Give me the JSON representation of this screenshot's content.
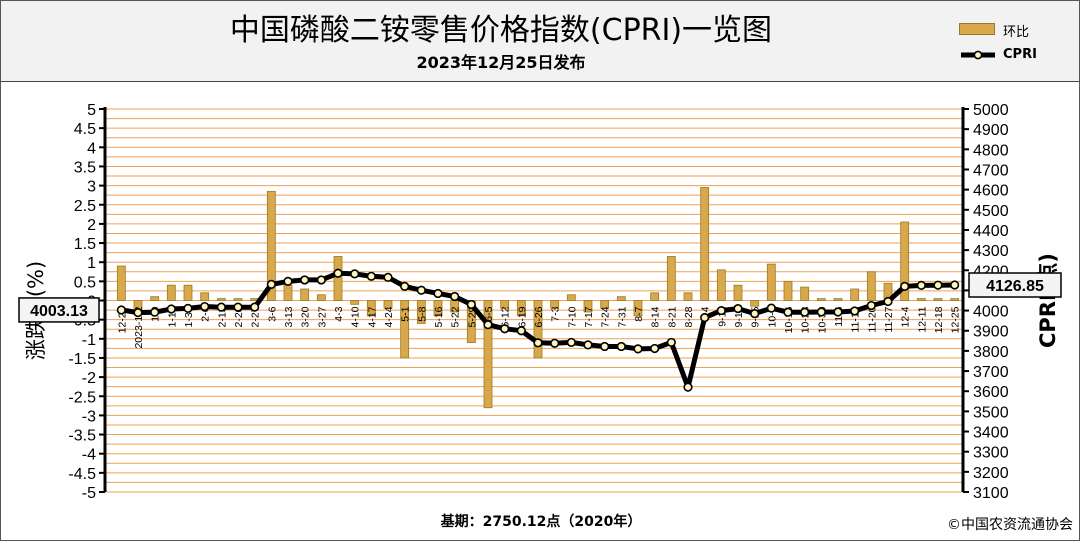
{
  "header": {
    "title": "中国磷酸二铵零售价格指数(CPRI)一览图",
    "subtitle": "2023年12月25日发布"
  },
  "legend": {
    "bar_label": "环比",
    "line_label": "CPRI"
  },
  "footer": {
    "base": "基期：2750.12点（2020年）",
    "copyright": "©中国农资流通协会"
  },
  "chart_data": {
    "type": "bar+line",
    "left_axis": {
      "label": "涨跌幅(%)",
      "range": [
        -5,
        5
      ],
      "ticks": [
        "5",
        "4.5",
        "4",
        "3.5",
        "3",
        "2.5",
        "2",
        "1.5",
        "1",
        "0.5",
        "0",
        "-0.5",
        "-1",
        "-1.5",
        "-2",
        "-2.5",
        "-3",
        "-3.5",
        "-4",
        "-4.5",
        "-5"
      ]
    },
    "right_axis": {
      "label": "CPRI(点)",
      "range": [
        3100,
        5000
      ],
      "ticks": [
        "5000",
        "4900",
        "4800",
        "4700",
        "4600",
        "4500",
        "4400",
        "4300",
        "4200",
        "4100",
        "4000",
        "3900",
        "3800",
        "3700",
        "3600",
        "3500",
        "3400",
        "3300",
        "3200",
        "3100"
      ]
    },
    "start_value_label": "4003.13",
    "end_value_label": "4126.85",
    "categories": [
      "12-26",
      "2023-1-2",
      "1-9",
      "1-16",
      "1-30",
      "2-6",
      "2-13",
      "2-20",
      "2-27",
      "3-6",
      "3-13",
      "3-20",
      "3-27",
      "4-3",
      "4-10",
      "4-17",
      "4-24",
      "5-1",
      "5-8",
      "5-16",
      "5-22",
      "5-29",
      "6-5",
      "6-12",
      "6-19",
      "6-26",
      "7-3",
      "7-10",
      "7-17",
      "7-24",
      "7-31",
      "8-7",
      "8-14",
      "8-21",
      "8-28",
      "9-4",
      "9-11",
      "9-18",
      "9-25",
      "10-9",
      "10-16",
      "10-23",
      "10-30",
      "11-6",
      "11-13",
      "11-20",
      "11-27",
      "12-4",
      "12-11",
      "12-18",
      "12-25"
    ],
    "series": [
      {
        "name": "环比",
        "type": "bar",
        "values": [
          0.9,
          -0.3,
          0.1,
          0.4,
          0.4,
          0.2,
          0.05,
          0.05,
          0.05,
          2.85,
          0.4,
          0.3,
          0.15,
          1.15,
          -0.1,
          -0.4,
          -0.2,
          -1.5,
          -0.6,
          -0.4,
          -0.3,
          -1.1,
          -2.8,
          -0.2,
          -0.4,
          -1.5,
          -0.2,
          0.15,
          -0.3,
          -0.2,
          0.1,
          -0.4,
          0.2,
          1.15,
          0.2,
          2.95,
          0.8,
          0.4,
          -0.15,
          0.95,
          0.5,
          0.35,
          0.05,
          0.05,
          0.3,
          0.75,
          0.45,
          2.05,
          0.05,
          0.05,
          0.05
        ]
      },
      {
        "name": "CPRI",
        "type": "line",
        "values": [
          4003.13,
          3990,
          3992,
          4008,
          4011,
          4020,
          4017,
          4017,
          4017,
          4130,
          4145,
          4152,
          4152,
          4185,
          4182,
          4170,
          4165,
          4120,
          4101,
          4085,
          4070,
          4030,
          3930,
          3910,
          3900,
          3840,
          3838,
          3842,
          3830,
          3822,
          3822,
          3810,
          3812,
          3842,
          3620,
          3965,
          4000,
          4010,
          3985,
          4012,
          3992,
          3992,
          3993,
          3993,
          3998,
          4025,
          4045,
          4120,
          4125,
          4126,
          4126.85
        ]
      }
    ]
  }
}
